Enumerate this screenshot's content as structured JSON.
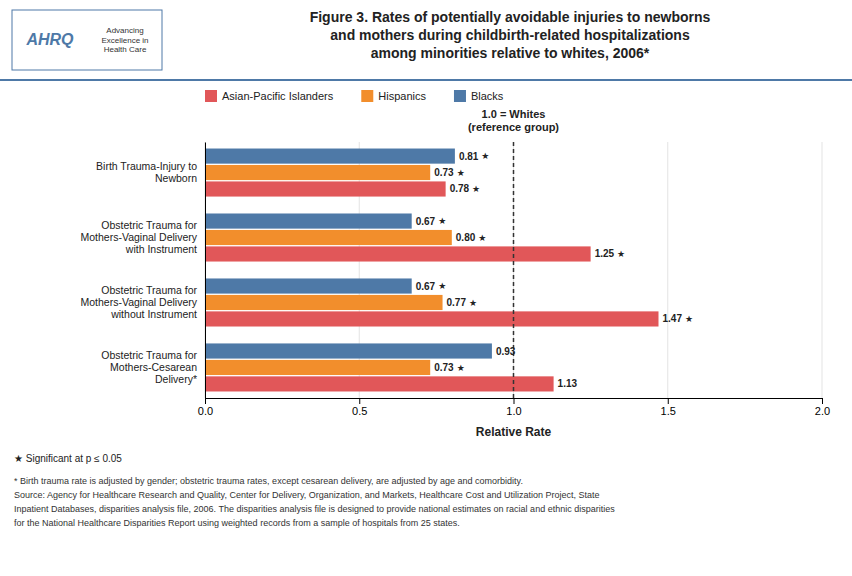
{
  "chart_data": {
    "type": "bar",
    "orientation": "horizontal",
    "title": "Figure 3. Rates of potentially avoidable injuries to newborns\nand mothers during childbirth-related hospitalizations\namong minorities relative to whites, 2006*",
    "logo_text": [
      "AHRQ",
      "Advancing\nExcellence in\nHealth Care"
    ],
    "categories": [
      "Birth Trauma-Injury to\nNewborn",
      "Obstetric Trauma for\nMothers-Vaginal Delivery\nwith Instrument",
      "Obstetric Trauma for\nMothers-Vaginal Delivery\nwithout Instrument",
      "Obstetric Trauma for\nMothers-Cesarean\nDelivery*"
    ],
    "series": [
      {
        "name": "Blacks",
        "values": [
          0.81,
          0.67,
          0.67,
          0.93
        ],
        "value_labels": [
          "0.81",
          "0.67",
          "0.67",
          "0.93"
        ],
        "significant": [
          true,
          true,
          true,
          false
        ]
      },
      {
        "name": "Hispanics",
        "values": [
          0.73,
          0.8,
          0.77,
          0.73
        ],
        "value_labels": [
          "0.73",
          "0.80",
          "0.77",
          "0.73"
        ],
        "significant": [
          true,
          true,
          true,
          true
        ]
      },
      {
        "name": "Asian-Pacific Islanders",
        "values": [
          0.78,
          1.25,
          1.47,
          1.13
        ],
        "value_labels": [
          "0.78",
          "1.25",
          "1.47",
          "1.13"
        ],
        "significant": [
          true,
          true,
          true,
          false
        ]
      }
    ],
    "significance_symbol": "★",
    "xlim": [
      0,
      2
    ],
    "xticks": [
      {
        "value": 0,
        "label": "0.0"
      },
      0.5,
      {
        "value": 1,
        "label": "1.0"
      },
      1.5,
      {
        "value": 2,
        "label": "2.0"
      }
    ],
    "xlabel": "Relative Rate",
    "reference_line": {
      "value": 1,
      "label": "1.0 = Whites\n(reference group)"
    },
    "grid": true,
    "legend": "top",
    "data_labels": true,
    "note": "★ Significant at p ≤ 0.05",
    "footer": [
      "* Birth trauma rate is adjusted by gender; obstetric trauma rates, except cesarean delivery, are adjusted by age and comorbidity.",
      "Source: Agency for Healthcare Research and Quality, Center for Delivery, Organization, and Markets, Healthcare Cost and Utilization Project, State",
      "Inpatient Databases, disparities analysis file, 2006. The disparities analysis file is designed to provide national estimates on racial and ethnic disparities",
      "for the National Healthcare Disparities Report using weighted records from a sample of hospitals from 25 states."
    ]
  }
}
